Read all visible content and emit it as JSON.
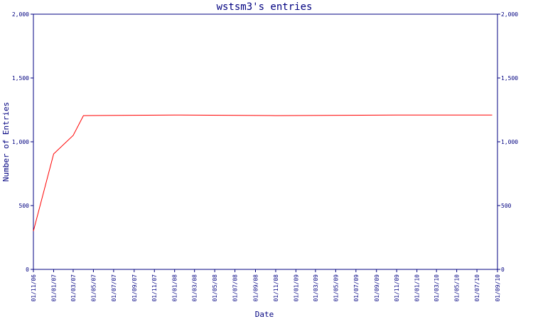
{
  "chart_data": {
    "type": "line",
    "title": "wstsm3's entries",
    "xlabel": "Date",
    "ylabel": "Number of Entries",
    "ylim": [
      0,
      2000
    ],
    "y_ticks": [
      "0",
      "500",
      "1,000",
      "1,500",
      "2,000"
    ],
    "y_tick_values": [
      0,
      500,
      1000,
      1500,
      2000
    ],
    "xlim": [
      "2006-11-01",
      "2010-09-01"
    ],
    "x_ticks": [
      "01/11/06",
      "01/01/07",
      "01/03/07",
      "01/05/07",
      "01/07/07",
      "01/09/07",
      "01/11/07",
      "01/01/08",
      "01/03/08",
      "01/05/08",
      "01/07/08",
      "01/09/08",
      "01/11/08",
      "01/01/09",
      "01/03/09",
      "01/05/09",
      "01/07/09",
      "01/09/09",
      "01/11/09",
      "01/01/10",
      "01/03/10",
      "01/05/10",
      "01/07/10",
      "01/09/10"
    ],
    "x_tick_dates": [
      "2006-11-01",
      "2007-01-01",
      "2007-03-01",
      "2007-05-01",
      "2007-07-01",
      "2007-09-01",
      "2007-11-01",
      "2008-01-01",
      "2008-03-01",
      "2008-05-01",
      "2008-07-01",
      "2008-09-01",
      "2008-11-01",
      "2009-01-01",
      "2009-03-01",
      "2009-05-01",
      "2009-07-01",
      "2009-09-01",
      "2009-11-01",
      "2010-01-01",
      "2010-03-01",
      "2010-05-01",
      "2010-07-01",
      "2010-09-01"
    ],
    "grid": false,
    "line_color": "#ff0000",
    "axis_color": "#000080",
    "series": [
      {
        "x": [
          "2006-11-01",
          "2007-01-01",
          "2007-03-01",
          "2007-04-01",
          "2008-01-01",
          "2008-11-01",
          "2009-11-01",
          "2010-08-16"
        ],
        "values": [
          300,
          905,
          1050,
          1205,
          1210,
          1205,
          1210,
          1210
        ]
      }
    ]
  }
}
